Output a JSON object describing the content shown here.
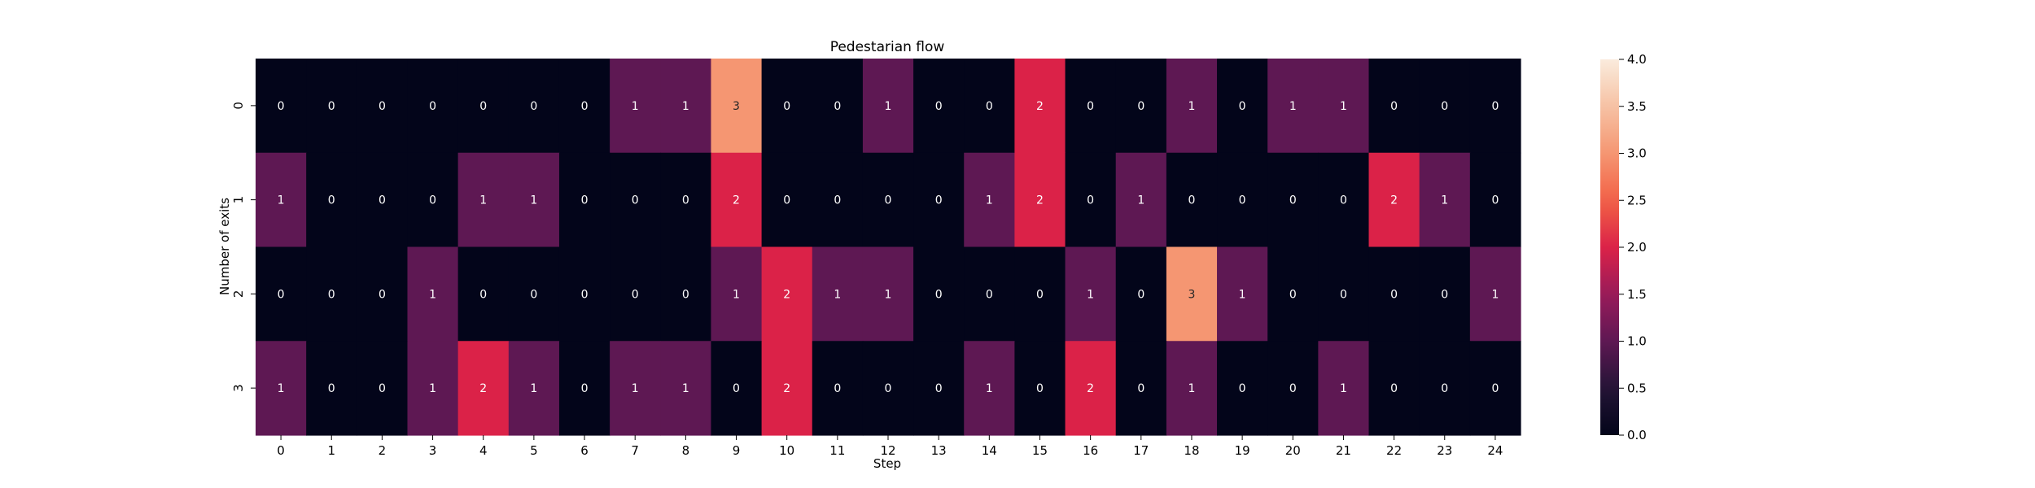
{
  "chart_data": {
    "type": "heatmap",
    "title": "Pedestarian flow",
    "xlabel": "Step",
    "ylabel": "Number of exits",
    "x_categories": [
      "0",
      "1",
      "2",
      "3",
      "4",
      "5",
      "6",
      "7",
      "8",
      "9",
      "10",
      "11",
      "12",
      "13",
      "14",
      "15",
      "16",
      "17",
      "18",
      "19",
      "20",
      "21",
      "22",
      "23",
      "24"
    ],
    "y_categories": [
      "0",
      "1",
      "2",
      "3"
    ],
    "values": [
      [
        0,
        0,
        0,
        0,
        0,
        0,
        0,
        1,
        1,
        3,
        0,
        0,
        1,
        0,
        0,
        2,
        0,
        0,
        1,
        0,
        1,
        1,
        0,
        0,
        0
      ],
      [
        1,
        0,
        0,
        0,
        1,
        1,
        0,
        0,
        0,
        2,
        0,
        0,
        0,
        0,
        1,
        2,
        0,
        1,
        0,
        0,
        0,
        0,
        2,
        1,
        0
      ],
      [
        0,
        0,
        0,
        1,
        0,
        0,
        0,
        0,
        0,
        1,
        2,
        1,
        1,
        0,
        0,
        0,
        1,
        0,
        3,
        1,
        0,
        0,
        0,
        0,
        1
      ],
      [
        1,
        0,
        0,
        1,
        2,
        1,
        0,
        1,
        1,
        0,
        2,
        0,
        0,
        0,
        1,
        0,
        2,
        0,
        1,
        0,
        0,
        1,
        0,
        0,
        0
      ]
    ],
    "color_range": [
      0,
      4
    ],
    "colormap": "rocket",
    "colorbar_ticks": [
      "0.0",
      "0.5",
      "1.0",
      "1.5",
      "2.0",
      "2.5",
      "3.0",
      "3.5",
      "4.0"
    ],
    "colorbar_tick_values": [
      0,
      0.5,
      1,
      1.5,
      2,
      2.5,
      3,
      3.5,
      4
    ],
    "annotated": true,
    "grid": false
  }
}
